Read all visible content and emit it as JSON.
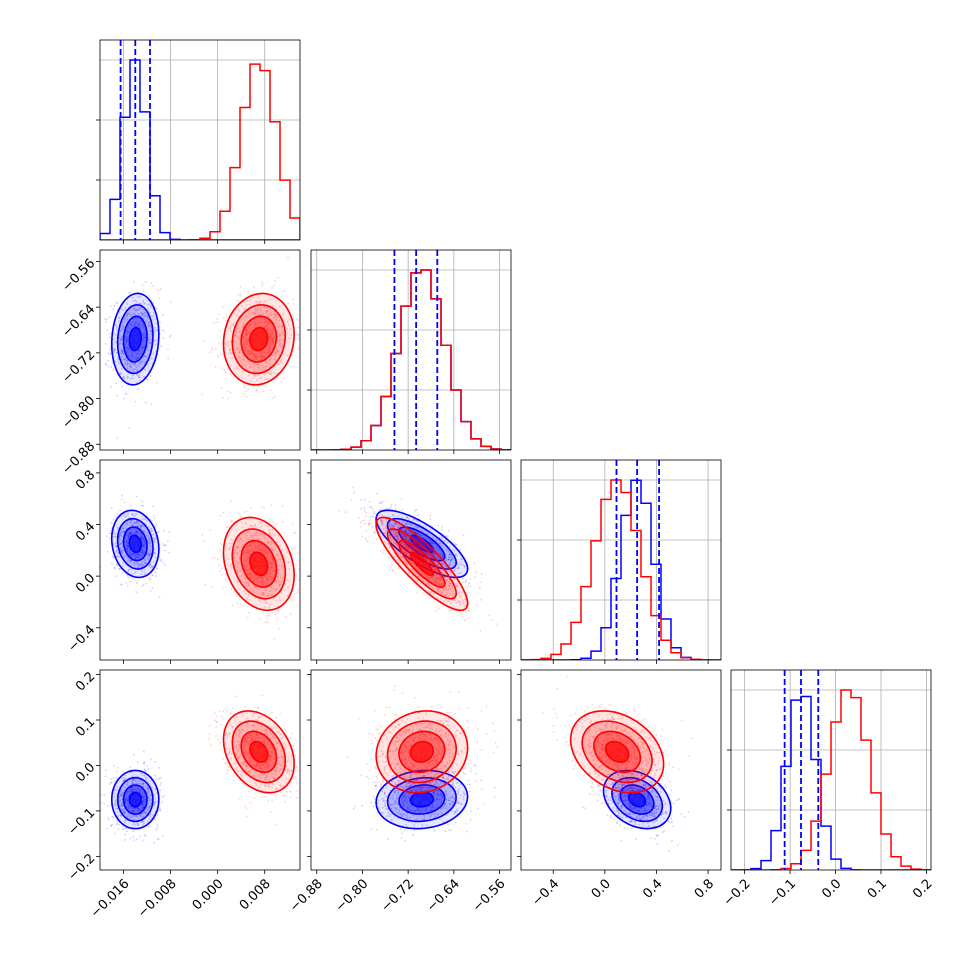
{
  "chart_data": {
    "type": "corner",
    "title": "",
    "grid": true,
    "colors": {
      "blue": "#0000ff",
      "red": "#ff0000"
    },
    "series": [
      {
        "color": "blue",
        "means": [
          -0.014,
          -0.696,
          0.25,
          -0.075
        ],
        "sds": [
          0.002,
          0.04,
          0.13,
          0.032
        ]
      },
      {
        "color": "red",
        "means": [
          0.007,
          -0.696,
          0.095,
          0.03
        ],
        "sds": [
          0.003,
          0.04,
          0.18,
          0.045
        ]
      }
    ],
    "correlations": {
      "blue": {
        "1_0": 0.1,
        "2_0": -0.15,
        "2_1": -0.75,
        "3_0": 0.0,
        "3_1": 0.1,
        "3_2": -0.3
      },
      "red": {
        "1_0": 0.1,
        "2_0": -0.25,
        "2_1": -0.85,
        "3_0": -0.3,
        "3_1": 0.1,
        "3_2": -0.3
      }
    },
    "quantile_lines": [
      [
        -0.0165,
        -0.014,
        -0.0115
      ],
      [
        -0.744,
        -0.706,
        -0.669
      ],
      [
        0.09,
        0.25,
        0.42
      ],
      [
        -0.112,
        -0.076,
        -0.038
      ]
    ],
    "variables": [
      {
        "range": [
          -0.02,
          0.014
        ],
        "ticks": [
          -0.016,
          -0.008,
          0.0,
          0.008
        ],
        "tick_labels": [
          "−0.016",
          "−0.008",
          "0.000",
          "0.008"
        ]
      },
      {
        "range": [
          -0.89,
          -0.54
        ],
        "ticks": [
          -0.88,
          -0.8,
          -0.72,
          -0.64,
          -0.56
        ],
        "tick_labels": [
          "−0.88",
          "−0.80",
          "−0.72",
          "−0.64",
          "−0.56"
        ]
      },
      {
        "range": [
          -0.65,
          0.9
        ],
        "ticks": [
          -0.4,
          0.0,
          0.4,
          0.8
        ],
        "tick_labels": [
          "−0.4",
          "0.0",
          "0.4",
          "0.8"
        ]
      },
      {
        "range": [
          -0.23,
          0.21
        ],
        "ticks": [
          -0.2,
          -0.1,
          0.0,
          0.1,
          0.2
        ],
        "tick_labels": [
          "−0.2",
          "−0.1",
          "0.0",
          "0.1",
          "0.2"
        ]
      }
    ]
  }
}
